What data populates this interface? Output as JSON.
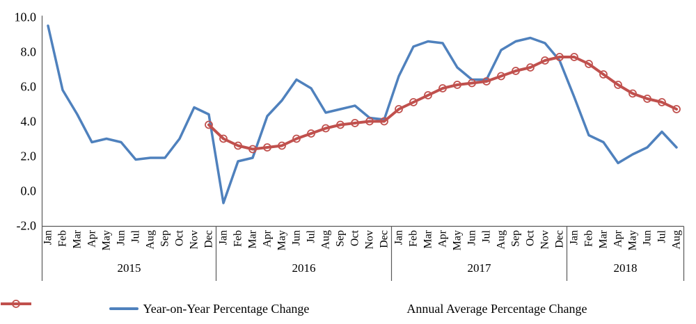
{
  "chart_data": {
    "type": "line",
    "title": "",
    "grid": false,
    "legend_position": "bottom",
    "colors": {
      "series_blue": "#4F81BD",
      "series_red": "#C0504D",
      "axis_line": "#595959",
      "text": "#000000"
    },
    "y_axis": {
      "min": -2.0,
      "max": 10.0,
      "step": 2.0,
      "tick_labels": [
        "10.0",
        "8.0",
        "6.0",
        "4.0",
        "2.0",
        "0.0",
        "-2.0"
      ]
    },
    "x_axis": {
      "month_labels": [
        "Jan",
        "Feb",
        "Mar",
        "Apr",
        "May",
        "Jun",
        "Jul",
        "Aug",
        "Sep",
        "Oct",
        "Nov",
        "Dec",
        "Jan",
        "Feb",
        "Mar",
        "Apr",
        "May",
        "Jun",
        "Jul",
        "Aug",
        "Sep",
        "Oct",
        "Nov",
        "Dec",
        "Jan",
        "Feb",
        "Mar",
        "Apr",
        "May",
        "Jun",
        "Jul",
        "Aug",
        "Sep",
        "Oct",
        "Nov",
        "Dec",
        "Jan",
        "Feb",
        "Mar",
        "Apr",
        "May",
        "Jun",
        "Jul",
        "Aug"
      ],
      "year_groups": [
        {
          "label": "2015",
          "months": 12
        },
        {
          "label": "2016",
          "months": 12
        },
        {
          "label": "2017",
          "months": 12
        },
        {
          "label": "2018",
          "months": 8
        }
      ]
    },
    "series": [
      {
        "name": "Year-on-Year Percentage Change",
        "color": "#4F81BD",
        "marker": "none",
        "line_width": 3.5,
        "start_index": 0,
        "values": [
          9.5,
          5.8,
          4.4,
          2.8,
          3.0,
          2.8,
          1.8,
          1.9,
          1.9,
          3.0,
          4.8,
          4.4,
          -0.7,
          1.7,
          1.9,
          4.3,
          5.2,
          6.4,
          5.9,
          4.5,
          4.7,
          4.9,
          4.2,
          4.1,
          6.6,
          8.3,
          8.6,
          8.5,
          7.1,
          6.4,
          6.4,
          8.1,
          8.6,
          8.8,
          8.5,
          7.5,
          5.4,
          3.2,
          2.8,
          1.6,
          2.1,
          2.5,
          3.4,
          2.5
        ]
      },
      {
        "name": "Annual Average Percentage Change",
        "color": "#C0504D",
        "marker": "open-circle",
        "line_width": 4,
        "start_index": 11,
        "values": [
          3.8,
          3.0,
          2.6,
          2.4,
          2.5,
          2.6,
          3.0,
          3.3,
          3.6,
          3.8,
          3.9,
          4.0,
          4.0,
          4.7,
          5.1,
          5.5,
          5.9,
          6.1,
          6.2,
          6.3,
          6.6,
          6.9,
          7.1,
          7.5,
          7.7,
          7.7,
          7.3,
          6.7,
          6.1,
          5.6,
          5.3,
          5.1,
          4.7
        ]
      }
    ]
  }
}
